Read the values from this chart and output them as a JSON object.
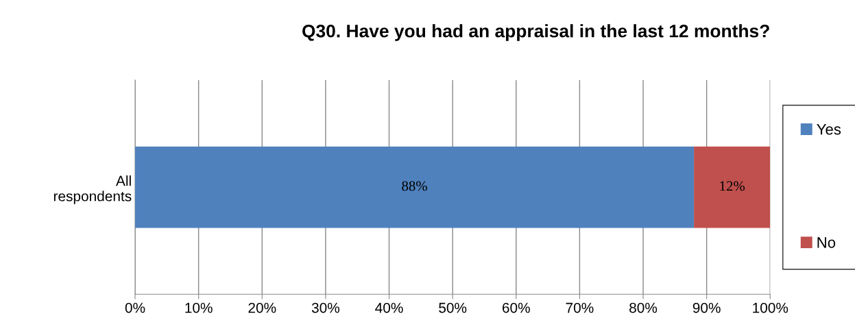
{
  "chart_data": {
    "type": "bar",
    "orientation": "horizontal",
    "stacked": true,
    "title": "Q30. Have you had an appraisal in the last 12 months?",
    "categories": [
      "All\nrespondents"
    ],
    "series": [
      {
        "name": "Yes",
        "color": "#4f81bd",
        "values": [
          88
        ],
        "value_labels": [
          "88%"
        ]
      },
      {
        "name": "No",
        "color": "#c0504d",
        "values": [
          12
        ],
        "value_labels": [
          "12%"
        ]
      }
    ],
    "xlim": [
      0,
      100
    ],
    "xticks": [
      {
        "value": 0,
        "label": "0%"
      },
      {
        "value": 10,
        "label": "10%"
      },
      {
        "value": 20,
        "label": "20%"
      },
      {
        "value": 30,
        "label": "30%"
      },
      {
        "value": 40,
        "label": "40%"
      },
      {
        "value": 50,
        "label": "50%"
      },
      {
        "value": 60,
        "label": "60%"
      },
      {
        "value": 70,
        "label": "70%"
      },
      {
        "value": 80,
        "label": "80%"
      },
      {
        "value": 90,
        "label": "90%"
      },
      {
        "value": 100,
        "label": "100%"
      }
    ],
    "grid": "x",
    "legend": "right"
  }
}
